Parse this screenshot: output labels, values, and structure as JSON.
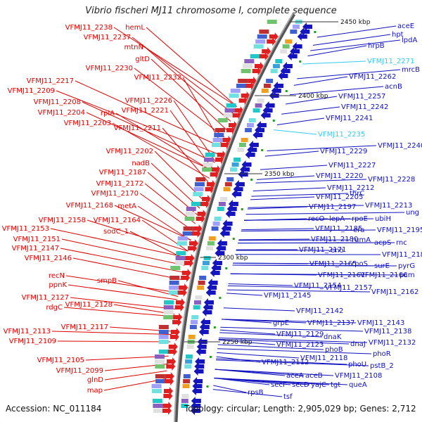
{
  "title": "Vibrio fischeri MJ11 chromosome I, complete sequence",
  "accession": "Accession: NC_011184",
  "topology": "Topology: circular; Length: 2,905,029 bp; Genes: 2,712",
  "colors": {
    "left_labels": "#e00000",
    "right_labels": "#1010c0",
    "pseudo_labels": "#33ccee",
    "ring": "#888888"
  },
  "kbp_ticks": [
    "2450 kbp",
    "2400 kbp",
    "2350 kbp",
    "2300 kbp",
    "2250 kbp"
  ],
  "left_genes": [
    "VFMJ11_2238",
    "hemL",
    "VFMJ11_2237",
    "mtnN",
    "gltD",
    "VFMJ11_2230",
    "VFMJ11_2232",
    "VFMJ11_2217",
    "VFMJ11_2209",
    "VFMJ11_2226",
    "VFMJ11_2208",
    "VFMJ11_2221",
    "VFMJ11_2204",
    "rpiA",
    "VFMJ11_2203",
    "VFMJ11_2211",
    "VFMJ11_2202",
    "nadB",
    "VFMJ11_2187",
    "VFMJ11_2172",
    "VFMJ11_2170",
    "VFMJ11_2168",
    "metA",
    "VFMJ11_2158",
    "VFMJ11_2164",
    "VFMJ11_2153",
    "sodC_1",
    "VFMJ11_2151",
    "VFMJ11_2147",
    "VFMJ11_2146",
    "recN",
    "smpB",
    "ppnK",
    "VFMJ11_2127",
    "VFMJ11_2128",
    "rdgC",
    "VFMJ11_2117",
    "VFMJ11_2113",
    "VFMJ11_2109",
    "VFMJ11_2105",
    "VFMJ11_2099",
    "glnD",
    "map"
  ],
  "right_genes": [
    "aceE",
    "hpt",
    "lpdA",
    "hrpB",
    "mrcB",
    "VFMJ11_2262",
    "acnB",
    "VFMJ11_2257",
    "VFMJ11_2242",
    "VFMJ11_2241",
    "VFMJ11_2240",
    "VFMJ11_2229",
    "VFMJ11_2227",
    "VFMJ11_2220",
    "VFMJ11_2228",
    "VFMJ11_2212",
    "thrC",
    "VFMJ11_2205",
    "VFMJ11_2213",
    "VFMJ11_2197",
    "ung",
    "ubiH",
    "recO",
    "lepA",
    "rpoE",
    "VFMJ11_2185",
    "era",
    "VFMJ11_2195",
    "VFMJ11_2180",
    "rumA",
    "acpS",
    "rnc",
    "VFMJ11_2171",
    "eno",
    "VFMJ11_2183",
    "VFMJ11_2165",
    "rpoS",
    "surE",
    "pyrG",
    "VFMJ11_2161",
    "VFMJ11_2166",
    "pcm",
    "VFMJ11_2154",
    "VFMJ11_2157",
    "VFMJ11_2162",
    "VFMJ11_2145",
    "VFMJ11_2142",
    "grpE",
    "VFMJ11_2137",
    "VFMJ11_2143",
    "VFMJ11_2129",
    "VFMJ11_2138",
    "dnaK",
    "VFMJ11_2123",
    "dnaJ",
    "VFMJ11_2132",
    "phoB",
    "phoR",
    "VFMJ11_2118",
    "VFMJ11_2112",
    "phoU",
    "pstB_2",
    "aceA",
    "aceB",
    "VFMJ11_2108",
    "secF",
    "secD",
    "yajC",
    "tgt",
    "queA",
    "rpsB",
    "tsf"
  ],
  "pseudo_genes": [
    "VFMJ11_2271",
    "VFMJ11_2235"
  ]
}
